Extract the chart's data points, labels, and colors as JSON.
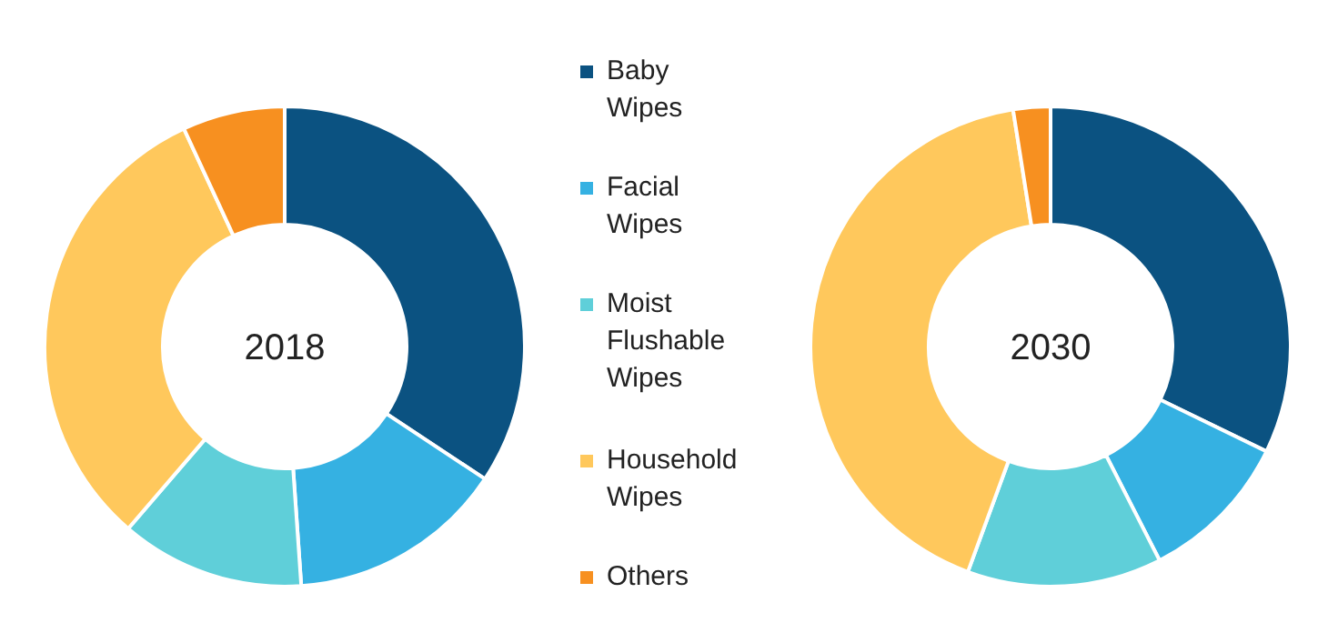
{
  "chart_data": [
    {
      "type": "donut",
      "title": "2018",
      "legend": "right",
      "categories": [
        "Baby Wipes",
        "Facial Wipes",
        "Moist Flushable Wipes",
        "Household Wipes",
        "Others"
      ],
      "values": [
        34.3,
        14.6,
        12.4,
        31.8,
        6.9
      ],
      "colors": [
        "#0b5281",
        "#35b1e2",
        "#5fcfd9",
        "#ffc85c",
        "#f79020"
      ]
    },
    {
      "type": "donut",
      "title": "2030",
      "values": [
        32.2,
        10.3,
        13.1,
        41.9,
        2.5
      ],
      "colors": [
        "#0b5281",
        "#35b1e2",
        "#5fcfd9",
        "#ffc85c",
        "#f79020"
      ]
    }
  ]
}
